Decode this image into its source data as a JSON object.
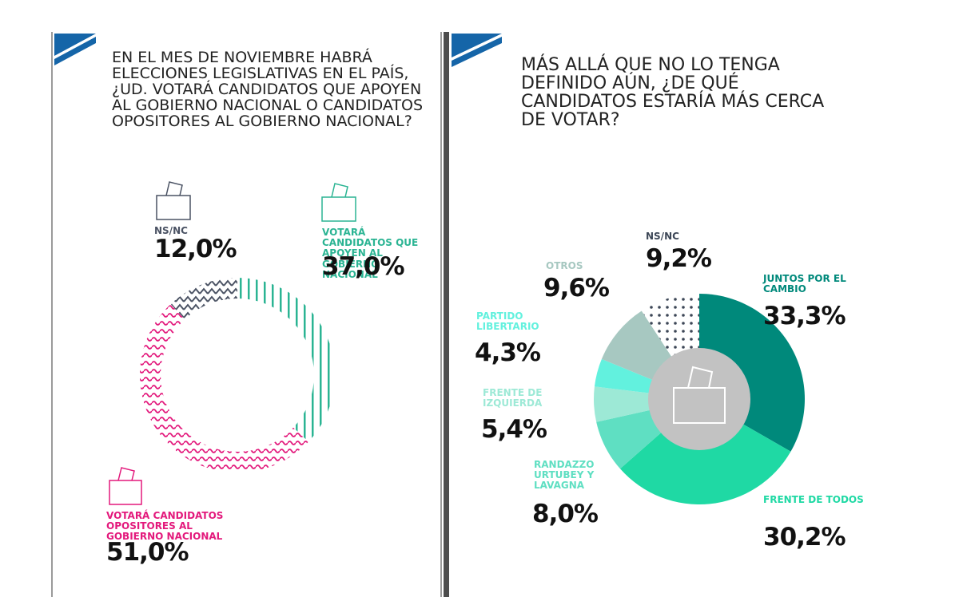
{
  "chart_data": [
    {
      "type": "donut",
      "title": "EN EL MES DE NOVIEMBRE HABRÁ ELECCIONES LEGISLATIVAS EN EL PAÍS, ¿UD. VOTARÁ CANDIDATOS QUE APOYEN AL GOBIERNO NACIONAL O CANDIDATOS OPOSITORES AL GOBIERNO NACIONAL?",
      "categories": [
        "VOTARÁ CANDIDATOS QUE APOYEN AL GOBIERNO NACIONAL",
        "VOTARÁ CANDIDATOS OPOSITORES AL GOBIERNO NACIONAL",
        "NS/NC"
      ],
      "values": [
        37.0,
        51.0,
        12.0
      ],
      "value_labels": [
        "37,0%",
        "51,0%",
        "12,0%"
      ],
      "colors": [
        "#2bb493",
        "#e3197c",
        "#4a5263"
      ]
    },
    {
      "type": "donut",
      "title": "MÁS ALLÁ QUE NO LO TENGA DEFINIDO AÚN, ¿DE QUÉ CANDIDATOS ESTARÍA MÁS CERCA DE VOTAR?",
      "categories": [
        "JUNTOS POR EL CAMBIO",
        "FRENTE DE TODOS",
        "RANDAZZO URTUBEY Y LAVAGNA",
        "FRENTE DE IZQUIERDA",
        "PARTIDO LIBERTARIO",
        "OTROS",
        "NS/NC"
      ],
      "values": [
        33.3,
        30.2,
        8.0,
        5.4,
        4.3,
        9.6,
        9.2
      ],
      "value_labels": [
        "33,3%",
        "30,2%",
        "8,0%",
        "5,4%",
        "4,3%",
        "9,6%",
        "9,2%"
      ],
      "colors": [
        "#00897b",
        "#1fd9a4",
        "#5fdfc2",
        "#9de9d6",
        "#62f1de",
        "#a7c8c1",
        "#3d4757"
      ]
    }
  ]
}
